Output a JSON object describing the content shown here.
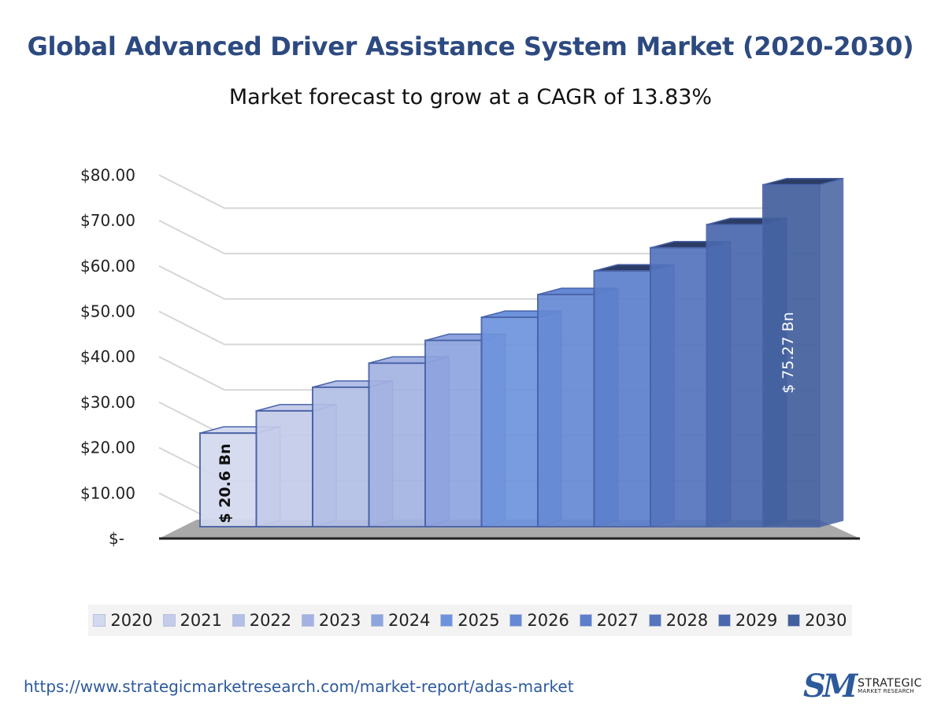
{
  "header": {
    "title": "Global Advanced Driver Assistance System Market (2020-2030)",
    "subtitle": "Market forecast to grow at a CAGR of 13.83%"
  },
  "chart_data": {
    "type": "bar",
    "title": "Global Advanced Driver Assistance System Market (2020-2030)",
    "subtitle": "Market forecast to grow at a CAGR of 13.83%",
    "categories": [
      "2020",
      "2021",
      "2022",
      "2023",
      "2024",
      "2025",
      "2026",
      "2027",
      "2028",
      "2029",
      "2030"
    ],
    "values": [
      20.6,
      25.5,
      30.7,
      36.0,
      41.0,
      46.1,
      51.1,
      56.3,
      61.4,
      66.5,
      75.27
    ],
    "y_ticks": [
      "$-",
      "$10.00",
      "$20.00",
      "$30.00",
      "$40.00",
      "$50.00",
      "$60.00",
      "$70.00",
      "$80.00"
    ],
    "ylim": [
      0,
      80
    ],
    "grid": true,
    "legend_position": "bottom",
    "data_labels": [
      {
        "category": "2020",
        "text": "$ 20.6 Bn"
      },
      {
        "category": "2030",
        "text": "$ 75.27 Bn"
      }
    ],
    "colors": [
      "#d3d9ee",
      "#c4ccea",
      "#b3bfe6",
      "#a3b2e2",
      "#8ea4df",
      "#6e93dd",
      "#6589d4",
      "#5c7fcc",
      "#5474be",
      "#4a68ad",
      "#43609e"
    ]
  },
  "footer": {
    "url": "https://www.strategicmarketresearch.com/market-report/adas-market",
    "logo_mark": "SM",
    "logo_name": "STRATEGIC",
    "logo_sub": "MARKET RESEARCH"
  }
}
